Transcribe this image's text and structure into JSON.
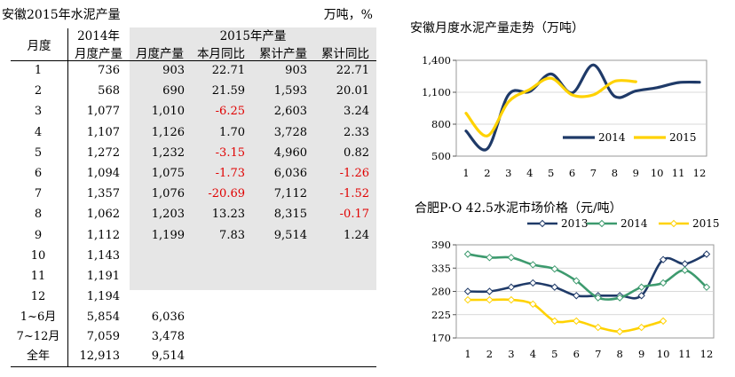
{
  "table": {
    "title": "安徽2015年水泥产量",
    "unit": "万吨，%",
    "header": {
      "month": "月度",
      "col_2014_line1": "2014年",
      "col_2014_line2": "月度产量",
      "group_2015": "2015年产量",
      "sub_cols": [
        "月度产量",
        "本月同比",
        "累计产量",
        "累计同比"
      ]
    },
    "rows": [
      {
        "m": "1",
        "p14": "736",
        "p15": "903",
        "yoy": "22.71",
        "cum": "903",
        "cumyoy": "22.71"
      },
      {
        "m": "2",
        "p14": "568",
        "p15": "690",
        "yoy": "21.59",
        "cum": "1,593",
        "cumyoy": "20.01"
      },
      {
        "m": "3",
        "p14": "1,077",
        "p15": "1,010",
        "yoy": "-6.25",
        "cum": "2,603",
        "cumyoy": "3.24"
      },
      {
        "m": "4",
        "p14": "1,107",
        "p15": "1,126",
        "yoy": "1.70",
        "cum": "3,728",
        "cumyoy": "2.33"
      },
      {
        "m": "5",
        "p14": "1,272",
        "p15": "1,232",
        "yoy": "-3.15",
        "cum": "4,960",
        "cumyoy": "0.82"
      },
      {
        "m": "6",
        "p14": "1,094",
        "p15": "1,075",
        "yoy": "-1.73",
        "cum": "6,036",
        "cumyoy": "-1.26"
      },
      {
        "m": "7",
        "p14": "1,357",
        "p15": "1,076",
        "yoy": "-20.69",
        "cum": "7,112",
        "cumyoy": "-1.52"
      },
      {
        "m": "8",
        "p14": "1,062",
        "p15": "1,203",
        "yoy": "13.23",
        "cum": "8,315",
        "cumyoy": "-0.17"
      },
      {
        "m": "9",
        "p14": "1,112",
        "p15": "1,199",
        "yoy": "7.83",
        "cum": "9,514",
        "cumyoy": "1.24"
      },
      {
        "m": "10",
        "p14": "1,143",
        "p15": "",
        "yoy": "",
        "cum": "",
        "cumyoy": ""
      },
      {
        "m": "11",
        "p14": "1,191",
        "p15": "",
        "yoy": "",
        "cum": "",
        "cumyoy": ""
      },
      {
        "m": "12",
        "p14": "1,194",
        "p15": "",
        "yoy": "",
        "cum": "",
        "cumyoy": ""
      }
    ],
    "summary": [
      {
        "m": "1~6月",
        "p14": "5,854",
        "p15": "6,036"
      },
      {
        "m": "7~12月",
        "p14": "7,059",
        "p15": "3,478"
      },
      {
        "m": "全年",
        "p14": "12,913",
        "p15": "9,514"
      }
    ],
    "negative_color": "#e00000",
    "shade_color": "#e6e6e6"
  },
  "chart_data": [
    {
      "type": "line",
      "title": "安徽月度水泥产量走势（万吨）",
      "x": [
        1,
        2,
        3,
        4,
        5,
        6,
        7,
        8,
        9,
        10,
        11,
        12
      ],
      "xticks": [
        "1",
        "2",
        "3",
        "4",
        "5",
        "6",
        "7",
        "8",
        "9",
        "10",
        "11",
        "12"
      ],
      "ylim": [
        500,
        1400
      ],
      "yticks": [
        "500",
        "800",
        "1,100",
        "1,400"
      ],
      "ytick_values": [
        500,
        800,
        1100,
        1400
      ],
      "legend_position": "bottom-right",
      "smooth": true,
      "markers": false,
      "series": [
        {
          "name": "2014",
          "color": "#1f3a68",
          "values": [
            736,
            568,
            1077,
            1107,
            1272,
            1094,
            1357,
            1062,
            1112,
            1143,
            1191,
            1194
          ]
        },
        {
          "name": "2015",
          "color": "#ffd200",
          "values": [
            903,
            690,
            1010,
            1126,
            1232,
            1075,
            1076,
            1203,
            1199,
            null,
            null,
            null
          ]
        }
      ]
    },
    {
      "type": "line",
      "title": "合肥P·O 42.5水泥市场价格（元/吨）",
      "x": [
        1,
        2,
        3,
        4,
        5,
        6,
        7,
        8,
        9,
        10,
        11,
        12
      ],
      "xticks": [
        "1",
        "2",
        "3",
        "4",
        "5",
        "6",
        "7",
        "8",
        "9",
        "10",
        "11",
        "12"
      ],
      "ylim": [
        170,
        390
      ],
      "yticks": [
        "170",
        "225",
        "280",
        "335",
        "390"
      ],
      "ytick_values": [
        170,
        225,
        280,
        335,
        390
      ],
      "legend_position": "top",
      "smooth": true,
      "markers": true,
      "series": [
        {
          "name": "2013",
          "color": "#1f3a68",
          "values": [
            280,
            280,
            290,
            300,
            290,
            270,
            270,
            270,
            270,
            355,
            345,
            368
          ]
        },
        {
          "name": "2014",
          "color": "#3d9a6e",
          "values": [
            368,
            360,
            360,
            343,
            333,
            305,
            265,
            265,
            290,
            300,
            330,
            290
          ]
        },
        {
          "name": "2015",
          "color": "#ffd200",
          "values": [
            260,
            260,
            260,
            250,
            210,
            210,
            195,
            185,
            195,
            210,
            null,
            null
          ]
        }
      ]
    }
  ]
}
